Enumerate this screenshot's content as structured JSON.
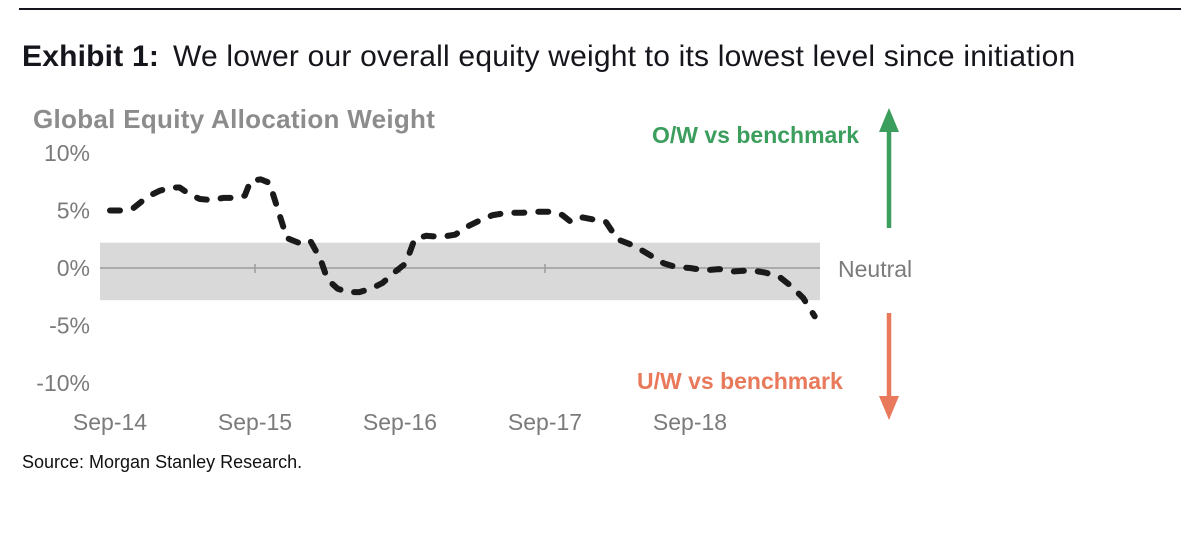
{
  "exhibit": {
    "label": "Exhibit 1:",
    "title": "We lower our overall equity weight to its lowest level since initiation"
  },
  "chart_data": {
    "type": "line",
    "title": "Global Equity Allocation Weight",
    "xlabel": "",
    "ylabel": "",
    "ylim": [
      -10,
      10
    ],
    "xlim": [
      0,
      4.9
    ],
    "grid": "off",
    "legend": "none",
    "yticks": [
      10,
      5,
      0,
      -5,
      -10
    ],
    "ytick_labels": [
      "10%",
      "5%",
      "0%",
      "-5%",
      "-10%"
    ],
    "xtick_positions": [
      0,
      1,
      2,
      3,
      4
    ],
    "xtick_labels": [
      "Sep-14",
      "Sep-15",
      "Sep-16",
      "Sep-17",
      "Sep-18"
    ],
    "x_unit": "years since Sep-14",
    "neutral_band": {
      "low": -2.8,
      "high": 2.2,
      "color": "#d9d9d9",
      "label": "Neutral"
    },
    "zero_line_color": "#9c9c9c",
    "series": [
      {
        "name": "Global equity allocation weight (% O/W or U/W vs benchmark)",
        "style": "dashed",
        "color": "#1a1a1a",
        "points": [
          [
            0.0,
            5.0
          ],
          [
            0.08,
            5.0
          ],
          [
            0.16,
            5.2
          ],
          [
            0.26,
            6.2
          ],
          [
            0.34,
            6.7
          ],
          [
            0.42,
            7.0
          ],
          [
            0.48,
            7.0
          ],
          [
            0.55,
            6.4
          ],
          [
            0.62,
            6.0
          ],
          [
            0.7,
            5.9
          ],
          [
            0.78,
            6.1
          ],
          [
            0.86,
            6.1
          ],
          [
            0.93,
            6.3
          ],
          [
            0.97,
            7.6
          ],
          [
            1.04,
            7.7
          ],
          [
            1.1,
            7.4
          ],
          [
            1.17,
            4.6
          ],
          [
            1.22,
            2.6
          ],
          [
            1.3,
            2.2
          ],
          [
            1.38,
            2.4
          ],
          [
            1.45,
            0.8
          ],
          [
            1.5,
            -1.0
          ],
          [
            1.57,
            -1.8
          ],
          [
            1.64,
            -2.1
          ],
          [
            1.72,
            -2.1
          ],
          [
            1.8,
            -1.8
          ],
          [
            1.88,
            -1.3
          ],
          [
            1.97,
            -0.3
          ],
          [
            2.04,
            0.4
          ],
          [
            2.1,
            2.5
          ],
          [
            2.18,
            2.8
          ],
          [
            2.28,
            2.7
          ],
          [
            2.38,
            2.9
          ],
          [
            2.48,
            3.7
          ],
          [
            2.56,
            4.2
          ],
          [
            2.64,
            4.6
          ],
          [
            2.74,
            4.8
          ],
          [
            2.84,
            4.8
          ],
          [
            2.94,
            4.9
          ],
          [
            3.04,
            4.9
          ],
          [
            3.12,
            4.6
          ],
          [
            3.18,
            4.0
          ],
          [
            3.26,
            4.4
          ],
          [
            3.34,
            4.2
          ],
          [
            3.42,
            4.0
          ],
          [
            3.5,
            2.5
          ],
          [
            3.58,
            2.1
          ],
          [
            3.66,
            1.6
          ],
          [
            3.74,
            1.0
          ],
          [
            3.82,
            0.4
          ],
          [
            3.9,
            0.1
          ],
          [
            4.0,
            0.0
          ],
          [
            4.1,
            -0.2
          ],
          [
            4.2,
            -0.1
          ],
          [
            4.3,
            -0.3
          ],
          [
            4.42,
            -0.2
          ],
          [
            4.52,
            -0.4
          ],
          [
            4.62,
            -0.8
          ],
          [
            4.7,
            -1.6
          ],
          [
            4.78,
            -2.6
          ],
          [
            4.86,
            -4.2
          ]
        ]
      }
    ],
    "annotations": {
      "overweight": {
        "label": "O/W vs benchmark",
        "color": "#3c9e5d",
        "arrow": "up"
      },
      "underweight": {
        "label": "U/W vs benchmark",
        "color": "#e8795a",
        "arrow": "down"
      }
    }
  },
  "source": "Source: Morgan Stanley Research."
}
